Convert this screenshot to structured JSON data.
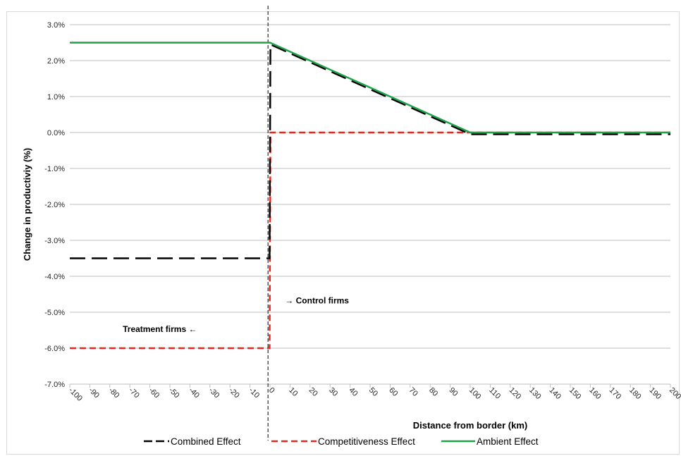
{
  "chart_data": {
    "type": "line",
    "title": "",
    "xlabel": "Distance from border (km)",
    "ylabel": "Change in productiviy (%)",
    "xlim": [
      -100,
      200
    ],
    "ylim": [
      -7.0,
      3.0
    ],
    "x_ticks": [
      "-100",
      "-90",
      "-80",
      "-70",
      "-60",
      "-50",
      "-40",
      "-30",
      "-20",
      "-10",
      "0",
      "10",
      "20",
      "30",
      "40",
      "50",
      "60",
      "70",
      "80",
      "90",
      "100",
      "110",
      "120",
      "130",
      "140",
      "150",
      "160",
      "170",
      "180",
      "190",
      "200"
    ],
    "y_ticks": [
      "3.0%",
      "2.0%",
      "1.0%",
      "0.0%",
      "-1.0%",
      "-2.0%",
      "-3.0%",
      "-4.0%",
      "-5.0%",
      "-6.0%",
      "-7.0%"
    ],
    "grid": "horizontal",
    "legend_position": "bottom",
    "series": [
      {
        "name": "Combined Effect",
        "color": "#000000",
        "style": "dashed",
        "x": [
          -100,
          -0.2,
          0.2,
          100,
          200
        ],
        "y": [
          -3.5,
          -3.5,
          2.45,
          -0.05,
          -0.05
        ]
      },
      {
        "name": "Competitiveness Effect",
        "color": "#e8261d",
        "style": "dashed",
        "x": [
          -100,
          -0.2,
          0.2,
          100,
          200
        ],
        "y": [
          -6.0,
          -6.0,
          0.0,
          0.0,
          0.0
        ]
      },
      {
        "name": "Ambient Effect",
        "color": "#1ea34a",
        "style": "solid",
        "x": [
          -100,
          0,
          100,
          200
        ],
        "y": [
          2.5,
          2.5,
          0.0,
          0.0
        ]
      }
    ],
    "vertical_reference_x": -1,
    "annotations": [
      {
        "text": "→ Control firms",
        "x": 7.5,
        "y": -4.75
      },
      {
        "text": "Treatment firms ←",
        "x": -55,
        "y": -5.55
      }
    ]
  }
}
